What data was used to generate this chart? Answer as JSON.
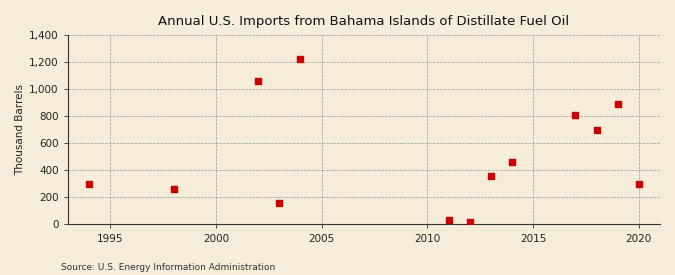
{
  "title": "Annual U.S. Imports from Bahama Islands of Distillate Fuel Oil",
  "ylabel": "Thousand Barrels",
  "source": "Source: U.S. Energy Information Administration",
  "background_color": "#f5edda",
  "plot_bg_color": "#f5edda",
  "marker_color": "#cc0000",
  "marker_size": 18,
  "xlim": [
    1993,
    2021
  ],
  "ylim": [
    0,
    1400
  ],
  "yticks": [
    0,
    200,
    400,
    600,
    800,
    1000,
    1200,
    1400
  ],
  "ytick_labels": [
    "0",
    "200",
    "400",
    "600",
    "800",
    "1,000",
    "1,200",
    "1,400"
  ],
  "xticks": [
    1995,
    2000,
    2005,
    2010,
    2015,
    2020
  ],
  "years": [
    1994,
    1998,
    2002,
    2003,
    2004,
    2011,
    2012,
    2013,
    2014,
    2017,
    2018,
    2019,
    2020
  ],
  "values": [
    300,
    260,
    1060,
    155,
    1220,
    30,
    15,
    360,
    460,
    810,
    700,
    890,
    300
  ]
}
